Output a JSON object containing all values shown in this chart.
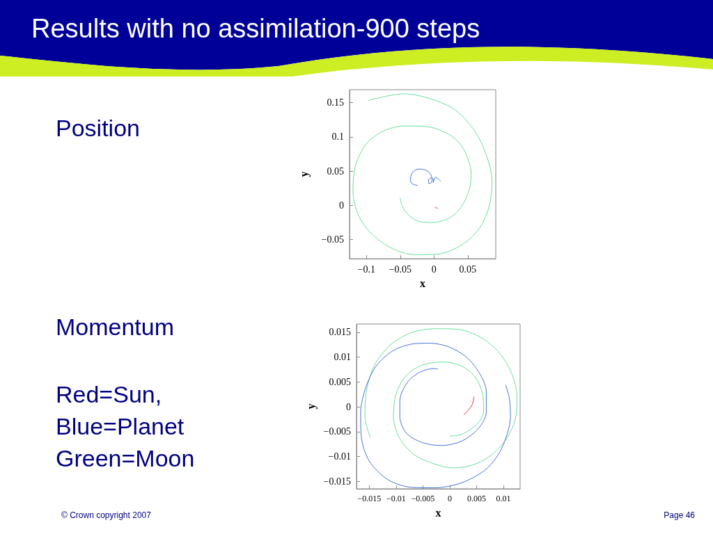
{
  "chart_data": [
    {
      "type": "line",
      "title": "Results with no assimilation-900 steps",
      "annotations": [
        "Position"
      ],
      "xlabel": "x",
      "ylabel": "y",
      "xlim": [
        -0.125,
        0.0914
      ],
      "ylim": [
        -0.078,
        0.169
      ],
      "xticks": [
        -0.1,
        -0.05,
        0,
        0.05
      ],
      "yticks": [
        -0.05,
        0,
        0.05,
        0.1,
        0.15
      ],
      "series": [
        {
          "color": "#66dd99",
          "x": [
            -0.098,
            -0.045,
            0.026,
            0.062,
            0.081,
            0.086,
            0.081,
            0.066,
            0.041,
            0.007,
            -0.028,
            -0.062,
            -0.093,
            -0.112,
            -0.12,
            -0.116,
            -0.1,
            -0.076,
            -0.045,
            -0.028,
            0,
            0.028,
            0.045,
            0.055,
            0.052,
            0.041,
            0.024,
            -0.003,
            -0.024,
            -0.041,
            -0.048,
            -0.05
          ],
          "values": [
            0.153,
            0.163,
            0.143,
            0.106,
            0.063,
            0.033,
            -0.004,
            -0.035,
            -0.058,
            -0.071,
            -0.072,
            -0.063,
            -0.041,
            -0.014,
            0.022,
            0.059,
            0.09,
            0.108,
            0.116,
            0.116,
            0.113,
            0.1,
            0.08,
            0.046,
            0.022,
            -0.001,
            -0.018,
            -0.025,
            -0.023,
            -0.011,
            0.002,
            0.011
          ]
        },
        {
          "color": "#4a6fd8",
          "x": [
            -0.024,
            -0.033,
            -0.035,
            -0.031,
            -0.023,
            -0.014,
            -0.006,
            -0.003,
            -0.004,
            -0.008,
            -0.008,
            -0.005,
            -0.001,
            -0.001,
            0.002,
            0.006,
            0.01
          ],
          "values": [
            0.029,
            0.032,
            0.039,
            0.049,
            0.053,
            0.052,
            0.047,
            0.039,
            0.033,
            0.032,
            0.037,
            0.04,
            0.038,
            0.033,
            0.041,
            0.039,
            0.035
          ]
        },
        {
          "color": "#e03040",
          "x": [
            0.001,
            0.004,
            0.006
          ],
          "values": [
            -0.002,
            -0.004,
            -0.004
          ]
        }
      ]
    },
    {
      "type": "line",
      "xlabel": "x",
      "ylabel": "y",
      "annotations": [
        "Momentum",
        "Red=Sun,\nBlue=Planet\nGreen=Moon",
        "© Crown copyright 2007",
        "Page 46"
      ],
      "xlim": [
        -0.01737,
        0.0131
      ],
      "ylim": [
        -0.0165,
        0.01665
      ],
      "xticks": [
        -0.015,
        -0.01,
        -0.005,
        0,
        0.005,
        0.01
      ],
      "yticks": [
        -0.015,
        -0.01,
        -0.005,
        0,
        0.005,
        0.01,
        0.015
      ],
      "series": [
        {
          "color": "#66dd99",
          "x": [
            -0.0148,
            -0.0158,
            -0.0156,
            -0.0141,
            -0.0111,
            -0.0072,
            -0.0029,
            0.0014,
            0.0057,
            0.0091,
            0.0115,
            0.0125,
            0.0122,
            0.0104,
            0.0074,
            0.004,
            0.0005,
            -0.0034,
            -0.0068,
            -0.0094,
            -0.0105,
            -0.01,
            -0.0081,
            -0.0051,
            -0.0012,
            0.0022,
            0.0048,
            0.0061,
            0.0063,
            0.0055,
            0.0035,
            0.0018,
            0
          ],
          "values": [
            -0.0062,
            -0.002,
            0.0026,
            0.0082,
            0.0124,
            0.0149,
            0.0157,
            0.0156,
            0.014,
            0.011,
            0.0068,
            0.0021,
            -0.0025,
            -0.0067,
            -0.01,
            -0.0118,
            -0.0123,
            -0.0113,
            -0.0095,
            -0.0062,
            -0.002,
            0.0026,
            0.0063,
            0.0084,
            0.009,
            0.0082,
            0.0059,
            0.0026,
            -0.0007,
            -0.003,
            -0.0048,
            -0.0057,
            -0.0059
          ]
        },
        {
          "color": "#4a6fd8",
          "x": [
            0.0104,
            0.0111,
            0.0113,
            0.0106,
            0.0091,
            0.0066,
            0.0022,
            -0.0029,
            -0.0072,
            -0.0116,
            -0.015,
            -0.0165,
            -0.0166,
            -0.0156,
            -0.0137,
            -0.0107,
            -0.0072,
            -0.0038,
            -0.0003,
            0.0031,
            0.0055,
            0.0068,
            0.0068,
            0.0053,
            0.0022,
            -0.0016,
            -0.0051,
            -0.0081,
            -0.0093,
            -0.0093,
            -0.0079,
            -0.0055,
            -0.0029,
            -0.0022
          ],
          "values": [
            0.0044,
            0.0017,
            -0.002,
            -0.0058,
            -0.0095,
            -0.0127,
            -0.0153,
            -0.0163,
            -0.0162,
            -0.0146,
            -0.0109,
            -0.0058,
            -0.0011,
            0.004,
            0.0082,
            0.0112,
            0.0126,
            0.0128,
            0.0121,
            0.01,
            0.0068,
            0.0031,
            -0.0011,
            -0.0044,
            -0.0069,
            -0.0078,
            -0.0072,
            -0.0053,
            -0.002,
            0.0012,
            0.0049,
            0.007,
            0.0077,
            0.0076
          ]
        },
        {
          "color": "#e03040",
          "x": [
            0.0026,
            0.0033,
            0.0042,
            0.0045
          ],
          "values": [
            -0.0016,
            -0.0009,
            0.0005,
            0.002
          ]
        }
      ]
    }
  ]
}
